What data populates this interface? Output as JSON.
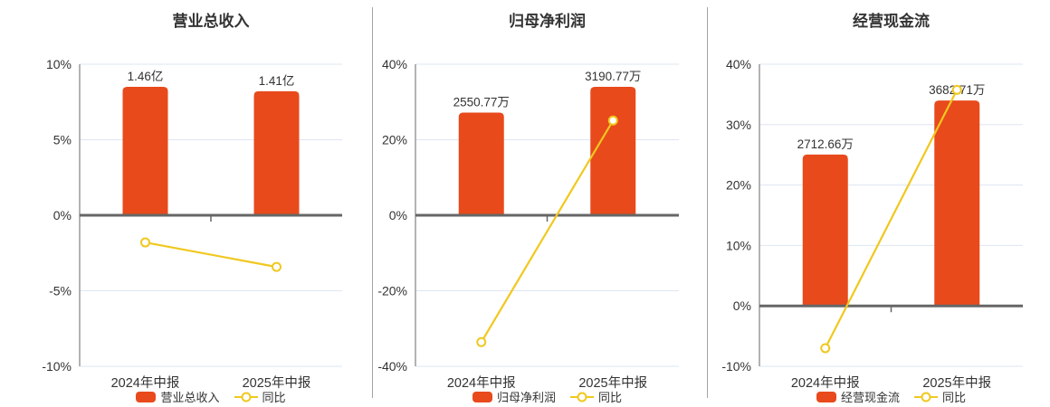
{
  "colors": {
    "bar": "#e84a1c",
    "line": "#f0c81e",
    "grid": "#dde6f2",
    "zero_axis": "#666666",
    "spine": "#9a9a9a",
    "text": "#333333",
    "divider": "#a3a3a3",
    "marker_fill": "#ffffff",
    "background": "#ffffff"
  },
  "chart_data": [
    {
      "type": "bar",
      "title": "营业总收入",
      "categories": [
        "2024年中报",
        "2025年中报"
      ],
      "bars": {
        "name": "营业总收入",
        "values": [
          1.46,
          1.41
        ],
        "unit": "亿",
        "value_labels": [
          "1.46亿",
          "1.41亿"
        ]
      },
      "line": {
        "name": "同比",
        "values": [
          -1.8,
          -3.42
        ],
        "unit": "%"
      },
      "ylim": [
        -10,
        10
      ],
      "ytick_step": 5,
      "yticks": [
        "10%",
        "5%",
        "0%",
        "-5%",
        "-10%"
      ],
      "ylabel": "",
      "xlabel": "",
      "grid": true,
      "legend_position": "bottom"
    },
    {
      "type": "bar",
      "title": "归母净利润",
      "categories": [
        "2024年中报",
        "2025年中报"
      ],
      "bars": {
        "name": "归母净利润",
        "values": [
          2550.77,
          3190.77
        ],
        "unit": "万",
        "value_labels": [
          "2550.77万",
          "3190.77万"
        ]
      },
      "line": {
        "name": "同比",
        "values": [
          -33.6,
          25.09
        ],
        "unit": "%"
      },
      "ylim": [
        -40,
        40
      ],
      "ytick_step": 20,
      "yticks": [
        "40%",
        "20%",
        "0%",
        "-20%",
        "-40%"
      ],
      "ylabel": "",
      "xlabel": "",
      "grid": true,
      "legend_position": "bottom"
    },
    {
      "type": "bar",
      "title": "经营现金流",
      "categories": [
        "2024年中报",
        "2025年中报"
      ],
      "bars": {
        "name": "经营现金流",
        "values": [
          2712.66,
          3682.71
        ],
        "unit": "万",
        "value_labels": [
          "2712.66万",
          "3682.71万"
        ]
      },
      "line": {
        "name": "同比",
        "values": [
          -7.0,
          35.76
        ],
        "unit": "%"
      },
      "ylim": [
        -10,
        40
      ],
      "ytick_step": 10,
      "yticks": [
        "40%",
        "30%",
        "20%",
        "10%",
        "0%",
        "-10%"
      ],
      "ylabel": "",
      "xlabel": "",
      "grid": true,
      "legend_position": "bottom"
    }
  ]
}
